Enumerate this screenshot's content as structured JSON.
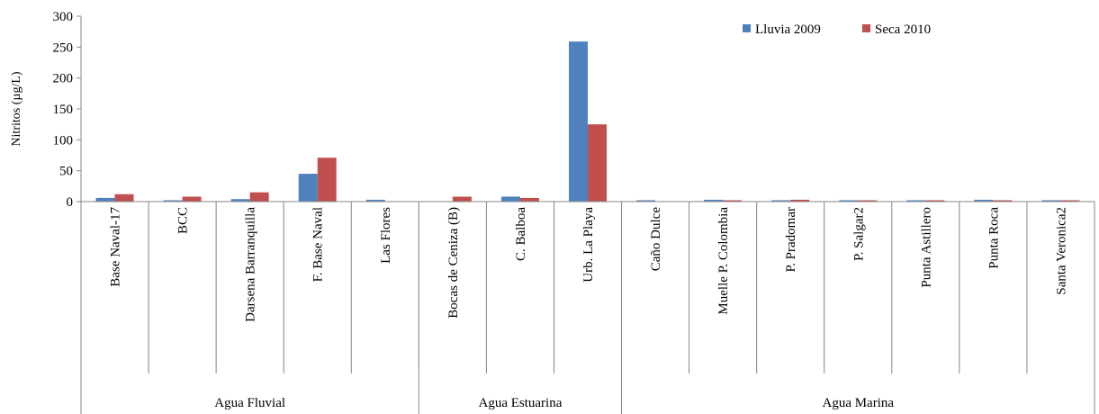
{
  "chart_data": {
    "type": "bar",
    "title": "",
    "xlabel": "",
    "ylabel": "Nitritos (µg/L)",
    "ylim": [
      0,
      300
    ],
    "yticks": [
      "0",
      "50",
      "100",
      "150",
      "200",
      "250",
      "300"
    ],
    "grid": false,
    "legend_position": "top-right",
    "categories": [
      "Base Naval-17",
      "BCC",
      "Darsena Barranquilla",
      "F. Base Naval",
      "Las Flores",
      "Bocas de Ceniza (B)",
      "C. Balboa",
      "Urb. La Playa",
      "Caño Dulce",
      "Muelle P. Colombia",
      "P. Pradomar",
      "P. Salgar2",
      "Punta Astillero",
      "Punta Roca",
      "Santa Veronica2"
    ],
    "groups": [
      {
        "label": "Agua Fluvial",
        "count": 5
      },
      {
        "label": "Agua Estuarina",
        "count": 3
      },
      {
        "label": "Agua Marina",
        "count": 7
      }
    ],
    "series": [
      {
        "name": "Lluvia 2009",
        "color": "#4f81bd",
        "values": [
          6,
          1,
          4,
          45,
          3,
          0,
          8,
          259,
          1,
          3,
          1,
          1,
          1,
          3,
          1
        ]
      },
      {
        "name": "Seca 2010",
        "color": "#c0504d",
        "values": [
          12,
          8,
          15,
          71,
          0,
          8,
          6,
          125,
          0,
          1,
          3,
          1,
          1,
          1,
          1
        ]
      }
    ]
  }
}
